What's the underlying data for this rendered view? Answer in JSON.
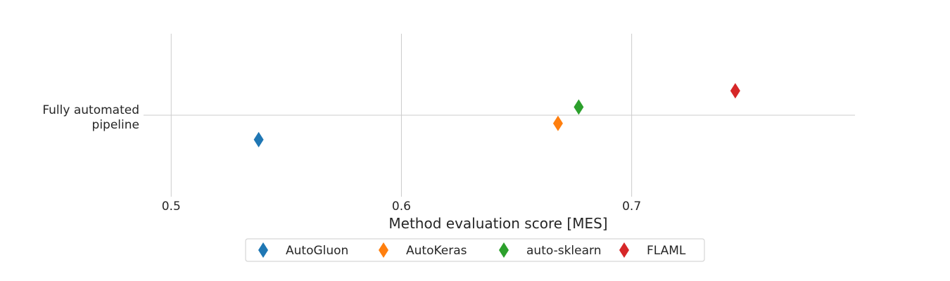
{
  "chart_data": {
    "type": "scatter",
    "orientation": "horizontal",
    "xlabel": "Method evaluation score [MES]",
    "xlim": [
      0.488,
      0.797
    ],
    "xticks": [
      0.5,
      0.6,
      0.7
    ],
    "xtick_labels": [
      "0.5",
      "0.6",
      "0.7"
    ],
    "categories": [
      "Fully automated\npipeline"
    ],
    "grid": true,
    "marker": "thin-diamond",
    "series": [
      {
        "name": "AutoGluon",
        "color": "#1f77b4",
        "values": [
          0.538
        ],
        "offset": -0.3
      },
      {
        "name": "AutoKeras",
        "color": "#ff7f0e",
        "values": [
          0.668
        ],
        "offset": -0.1
      },
      {
        "name": "auto-sklearn",
        "color": "#2ca02c",
        "values": [
          0.677
        ],
        "offset": 0.1
      },
      {
        "name": "FLAML",
        "color": "#d62728",
        "values": [
          0.745
        ],
        "offset": 0.3
      }
    ],
    "legend": {
      "position": "bottom",
      "columns": 4
    }
  }
}
